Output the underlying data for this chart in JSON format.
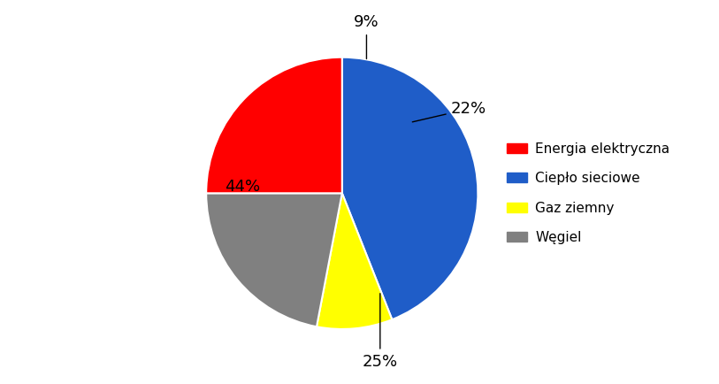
{
  "labels": [
    "Energia elektryczna",
    "Ciepło sieciowe",
    "Gaz ziemny",
    "Węgiel"
  ],
  "values": [
    25,
    44,
    9,
    22
  ],
  "colors": [
    "#FF0000",
    "#1F5DC8",
    "#FFFF00",
    "#808080"
  ],
  "pct_labels": [
    "25%",
    "44%",
    "9%",
    "22%"
  ],
  "background_color": "#FFFFFF",
  "legend_fontsize": 11,
  "pct_fontsize": 13,
  "figsize": [
    8.13,
    4.34
  ],
  "dpi": 100,
  "plot_values": [
    44,
    9,
    22,
    25
  ],
  "plot_colors": [
    "#1F5DC8",
    "#FFFF00",
    "#808080",
    "#FF0000"
  ],
  "plot_pct": [
    "44%",
    "9%",
    "22%",
    "25%"
  ],
  "legend_colors": [
    "#FF0000",
    "#1F5DC8",
    "#FFFF00",
    "#808080"
  ],
  "legend_labels": [
    "Energia elektryczna",
    "Ciepło sieciowe",
    "Gaz ziemny",
    "Węgiel"
  ]
}
